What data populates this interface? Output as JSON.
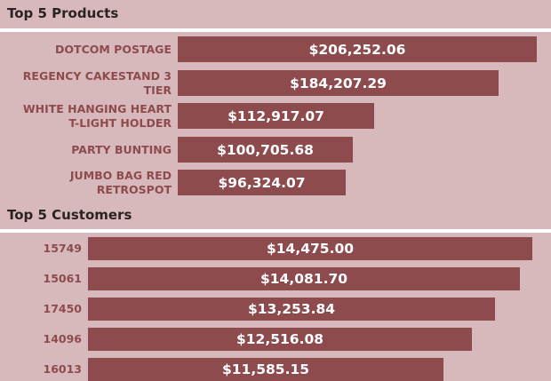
{
  "colors": {
    "background": "#d8b9bb",
    "bar": "#8e4b4e",
    "label": "#8e4b4e",
    "divider": "#ffffff"
  },
  "chart_data": [
    {
      "type": "bar",
      "orientation": "horizontal",
      "title": "Top 5 Products",
      "categories": [
        [
          "DOTCOM POSTAGE"
        ],
        [
          "REGENCY CAKESTAND 3 TIER"
        ],
        [
          "WHITE HANGING HEART",
          "T-LIGHT HOLDER"
        ],
        [
          "PARTY BUNTING"
        ],
        [
          "JUMBO BAG RED RETROSPOT"
        ]
      ],
      "values": [
        206252.06,
        184207.29,
        112917.07,
        100705.68,
        96324.07
      ],
      "value_labels": [
        "$206,252.06",
        "$184,207.29",
        "$112,917.07",
        "$100,705.68",
        "$96,324.07"
      ],
      "xlim": [
        0,
        206252.06
      ],
      "grid": false
    },
    {
      "type": "bar",
      "orientation": "horizontal",
      "title": "Top 5 Customers",
      "categories": [
        [
          "15749"
        ],
        [
          "15061"
        ],
        [
          "17450"
        ],
        [
          "14096"
        ],
        [
          "16013"
        ]
      ],
      "values": [
        14475.0,
        14081.7,
        13253.84,
        12516.08,
        11585.15
      ],
      "value_labels": [
        "$14,475.00",
        "$14,081.70",
        "$13,253.84",
        "$12,516.08",
        "$11,585.15"
      ],
      "xlim": [
        0,
        14475.0
      ],
      "grid": false
    }
  ]
}
